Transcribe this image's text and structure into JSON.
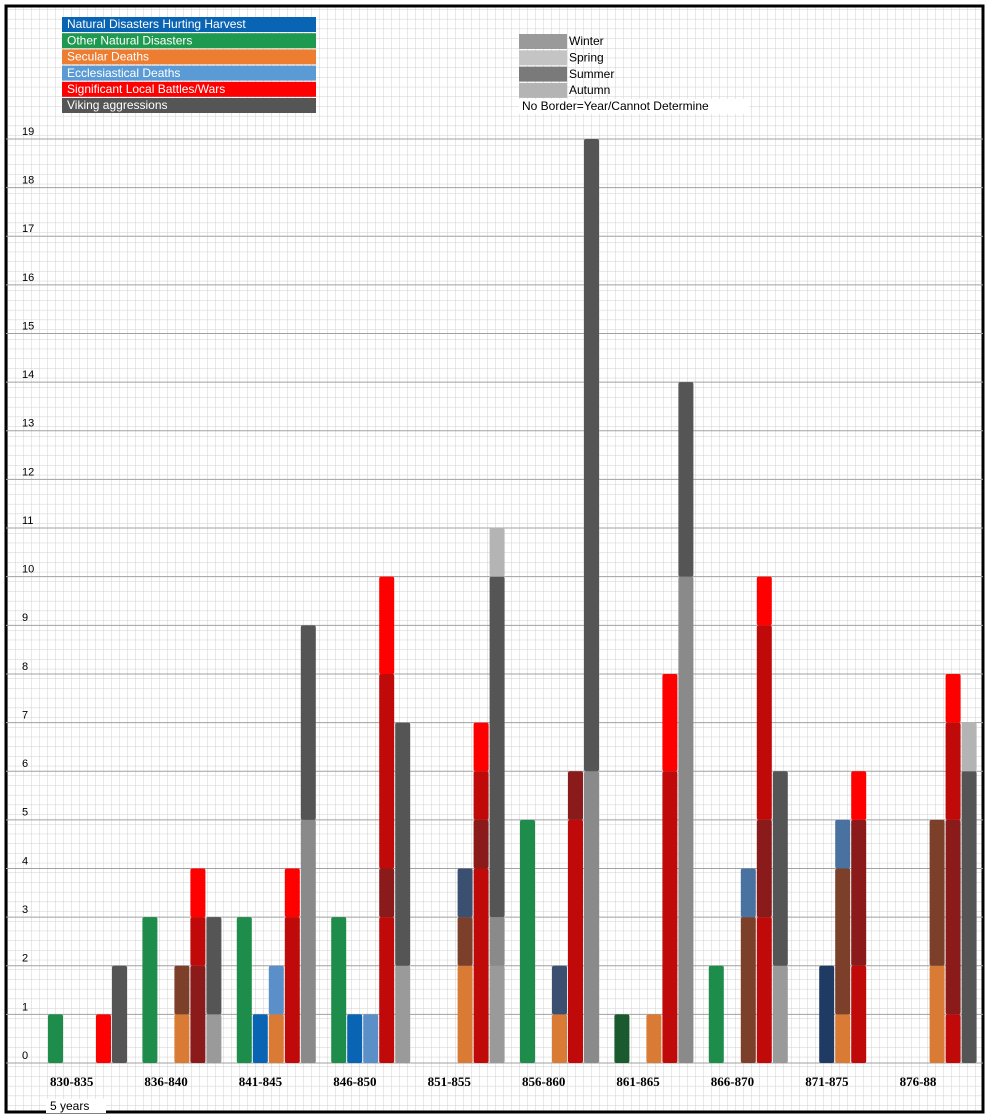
{
  "chart_data": {
    "type": "stacked-bar",
    "legend": [
      {
        "label": "Natural Disasters Hurting Harvest",
        "color": "#0a64b4"
      },
      {
        "label": "Other Natural Disasters",
        "color": "#1e9a50"
      },
      {
        "label": "Secular Deaths",
        "color": "#ed7d31"
      },
      {
        "label": "Ecclesiastical Deaths",
        "color": "#5b9bd5"
      },
      {
        "label": "Significant Local Battles/Wars",
        "color": "#ff0000"
      },
      {
        "label": "Viking aggressions",
        "color": "#555555"
      }
    ],
    "season_legend": [
      {
        "label": "Winter",
        "color": "#9a9a9a"
      },
      {
        "label": "Spring",
        "color": "#c4c4c4"
      },
      {
        "label": "Summer",
        "color": "#7a7a7a"
      },
      {
        "label": "Autumn",
        "color": "#b4b4b4"
      }
    ],
    "note": "No Border=Year/Cannot Determine",
    "x_label": "5 years",
    "ylim": [
      0,
      19
    ],
    "yticks": [
      0,
      1,
      2,
      3,
      4,
      5,
      6,
      7,
      8,
      9,
      10,
      11,
      12,
      13,
      14,
      15,
      16,
      17,
      18,
      19
    ],
    "groups": [
      {
        "label": "830-835",
        "bars": [
          [
            {
              "value": 1,
              "color": "#1e8c4a"
            }
          ],
          null,
          null,
          [
            {
              "value": 1,
              "color": "#ff0000"
            }
          ],
          [
            {
              "value": 2,
              "color": "#555555"
            }
          ]
        ]
      },
      {
        "label": "836-840",
        "bars": [
          [
            {
              "value": 3,
              "color": "#1e8c4a"
            }
          ],
          null,
          [
            {
              "value": 1,
              "color": "#d97a35"
            },
            {
              "value": 1,
              "color": "#7b3f2a"
            }
          ],
          [
            {
              "value": 2,
              "color": "#8b1a1a"
            },
            {
              "value": 1,
              "color": "#c00a0a"
            },
            {
              "value": 1,
              "color": "#ff0000"
            }
          ],
          [
            {
              "value": 1,
              "color": "#9a9a9a"
            },
            {
              "value": 2,
              "color": "#555555"
            }
          ]
        ]
      },
      {
        "label": "841-845",
        "bars": [
          [
            {
              "value": 3,
              "color": "#1e8c4a"
            }
          ],
          [
            {
              "value": 1,
              "color": "#0a64b4"
            }
          ],
          [
            {
              "value": 1,
              "color": "#d97a35"
            },
            {
              "value": 1,
              "color": "#5b8fc7"
            }
          ],
          [
            {
              "value": 3,
              "color": "#c00a0a"
            },
            {
              "value": 1,
              "color": "#ff0000"
            }
          ],
          [
            {
              "value": 5,
              "color": "#8a8a8a"
            },
            {
              "value": 4,
              "color": "#555555"
            }
          ]
        ]
      },
      {
        "label": "846-850",
        "bars": [
          [
            {
              "value": 3,
              "color": "#1e8c4a"
            }
          ],
          [
            {
              "value": 1,
              "color": "#0a64b4"
            }
          ],
          [
            {
              "value": 1,
              "color": "#5b8fc7"
            }
          ],
          [
            {
              "value": 3,
              "color": "#c00a0a"
            },
            {
              "value": 1,
              "color": "#8b1a1a"
            },
            {
              "value": 4,
              "color": "#c00a0a"
            },
            {
              "value": 2,
              "color": "#ff0000"
            }
          ],
          [
            {
              "value": 2,
              "color": "#9a9a9a"
            },
            {
              "value": 5,
              "color": "#555555"
            }
          ]
        ]
      },
      {
        "label": "851-855",
        "bars": [
          null,
          null,
          [
            {
              "value": 2,
              "color": "#d97a35"
            },
            {
              "value": 1,
              "color": "#7b3f2a"
            },
            {
              "value": 1,
              "color": "#3b5070"
            }
          ],
          [
            {
              "value": 4,
              "color": "#c00a0a"
            },
            {
              "value": 1,
              "color": "#8b1a1a"
            },
            {
              "value": 1,
              "color": "#c00a0a"
            },
            {
              "value": 1,
              "color": "#ff0000"
            }
          ],
          [
            {
              "value": 2,
              "color": "#9a9a9a"
            },
            {
              "value": 1,
              "color": "#8a8a8a"
            },
            {
              "value": 7,
              "color": "#555555"
            },
            {
              "value": 1,
              "color": "#b4b4b4"
            }
          ]
        ]
      },
      {
        "label": "856-860",
        "bars": [
          [
            {
              "value": 5,
              "color": "#1e8c4a"
            }
          ],
          null,
          [
            {
              "value": 1,
              "color": "#d97a35"
            },
            {
              "value": 1,
              "color": "#3b5070"
            }
          ],
          [
            {
              "value": 5,
              "color": "#c00a0a"
            },
            {
              "value": 1,
              "color": "#8b1a1a"
            }
          ],
          [
            {
              "value": 6,
              "color": "#8a8a8a"
            },
            {
              "value": 13,
              "color": "#555555"
            }
          ]
        ]
      },
      {
        "label": "861-865",
        "bars": [
          [
            {
              "value": 1,
              "color": "#1a5a2e"
            }
          ],
          null,
          [
            {
              "value": 1,
              "color": "#d97a35"
            }
          ],
          [
            {
              "value": 6,
              "color": "#c00a0a"
            },
            {
              "value": 2,
              "color": "#ff0000"
            }
          ],
          [
            {
              "value": 10,
              "color": "#8a8a8a"
            },
            {
              "value": 4,
              "color": "#555555"
            }
          ]
        ]
      },
      {
        "label": "866-870",
        "bars": [
          [
            {
              "value": 2,
              "color": "#1e8c4a"
            }
          ],
          null,
          [
            {
              "value": 3,
              "color": "#7b3f2a"
            },
            {
              "value": 1,
              "color": "#4a72a0"
            }
          ],
          [
            {
              "value": 3,
              "color": "#c00a0a"
            },
            {
              "value": 2,
              "color": "#8b1a1a"
            },
            {
              "value": 4,
              "color": "#c00a0a"
            },
            {
              "value": 1,
              "color": "#ff0000"
            }
          ],
          [
            {
              "value": 2,
              "color": "#9a9a9a"
            },
            {
              "value": 4,
              "color": "#555555"
            }
          ]
        ]
      },
      {
        "label": "871-875",
        "bars": [
          null,
          [
            {
              "value": 2,
              "color": "#1f3a63"
            }
          ],
          [
            {
              "value": 1,
              "color": "#d97a35"
            },
            {
              "value": 3,
              "color": "#7b3f2a"
            },
            {
              "value": 1,
              "color": "#4a72a0"
            }
          ],
          [
            {
              "value": 2,
              "color": "#c00a0a"
            },
            {
              "value": 3,
              "color": "#8b1a1a"
            },
            {
              "value": 1,
              "color": "#ff0000"
            }
          ],
          null
        ]
      },
      {
        "label": "876-88",
        "bars": [
          null,
          null,
          [
            {
              "value": 2,
              "color": "#d97a35"
            },
            {
              "value": 3,
              "color": "#7b3f2a"
            }
          ],
          [
            {
              "value": 1,
              "color": "#c00a0a"
            },
            {
              "value": 4,
              "color": "#8b1a1a"
            },
            {
              "value": 2,
              "color": "#c00a0a"
            },
            {
              "value": 1,
              "color": "#ff0000"
            }
          ],
          [
            {
              "value": 6,
              "color": "#555555"
            },
            {
              "value": 1,
              "color": "#b4b4b4"
            }
          ]
        ]
      }
    ]
  }
}
